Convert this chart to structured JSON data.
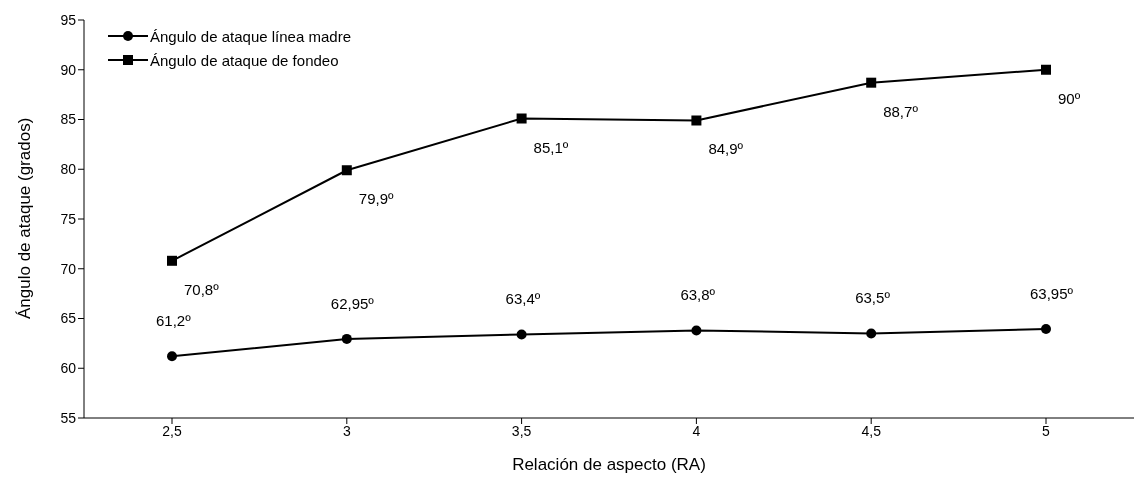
{
  "chart_data": {
    "type": "line",
    "xlabel": "Relación de aspecto (RA)",
    "ylabel": "Ángulo de ataque (grados)",
    "categories": [
      "2,5",
      "3",
      "3,5",
      "4",
      "4,5",
      "5"
    ],
    "series": [
      {
        "name": "Ángulo de ataque línea madre",
        "color": "#000000",
        "marker": "circle",
        "values": [
          61.2,
          62.95,
          63.4,
          63.8,
          63.5,
          63.95
        ],
        "value_labels": [
          "61,2º",
          "62,95º",
          "63,4º",
          "63,8º",
          "63,5º",
          "63,95º"
        ]
      },
      {
        "name": "Ángulo de ataque de fondeo",
        "color": "#000000",
        "marker": "square",
        "values": [
          70.8,
          79.9,
          85.1,
          84.9,
          88.7,
          90
        ],
        "value_labels": [
          "70,8º",
          "79,9º",
          "85,1º",
          "84,9º",
          "88,7º",
          "90º"
        ]
      }
    ],
    "ylim": [
      55,
      95
    ],
    "yticks": [
      55,
      60,
      65,
      70,
      75,
      80,
      85,
      90,
      95
    ],
    "grid": false,
    "legend": "top left",
    "line_style": "solid"
  }
}
